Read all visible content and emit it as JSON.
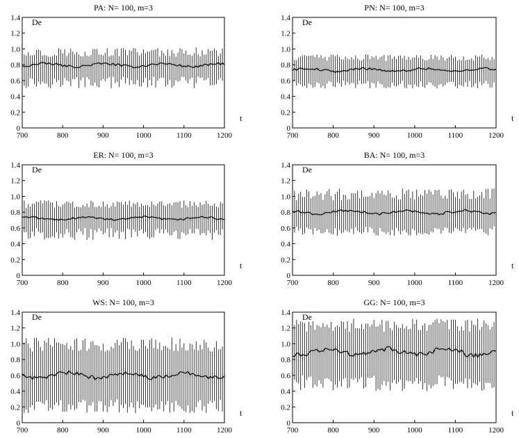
{
  "chart_data": [
    {
      "type": "line",
      "title": "PA:  N= 100, m=3",
      "ylabel": "De",
      "xlabel": "t",
      "xlim": [
        700,
        1200
      ],
      "ylim": [
        0,
        1.4
      ],
      "xticks": [
        "700",
        "800",
        "900",
        "1000",
        "1100",
        "1200"
      ],
      "yticks": [
        "0",
        "0.2",
        "0.4",
        "0.6",
        "0.8",
        "1.0",
        "1.2",
        "1.4"
      ],
      "grid": false,
      "series": [
        {
          "style": "spikes",
          "x_start": 700,
          "x_end": 1200,
          "x_step": 5,
          "y_min_range": [
            0.5,
            0.65
          ],
          "y_max_range": [
            0.9,
            1.02
          ]
        },
        {
          "style": "mean-line",
          "x_start": 700,
          "x_end": 1200,
          "x_step": 5,
          "y_range": [
            0.76,
            0.83
          ]
        }
      ]
    },
    {
      "type": "line",
      "title": "PN:  N= 100, m=3",
      "ylabel": "De",
      "xlabel": "t",
      "xlim": [
        700,
        1200
      ],
      "ylim": [
        0,
        1.4
      ],
      "xticks": [
        "700",
        "800",
        "900",
        "1000",
        "1100",
        "1200"
      ],
      "yticks": [
        "0",
        "0.2",
        "0.4",
        "0.6",
        "0.8",
        "1.0",
        "1.2",
        "1.4"
      ],
      "grid": false,
      "series": [
        {
          "style": "spikes",
          "x_start": 700,
          "x_end": 1200,
          "x_step": 5,
          "y_min_range": [
            0.5,
            0.6
          ],
          "y_max_range": [
            0.85,
            0.93
          ]
        },
        {
          "style": "mean-line",
          "x_start": 700,
          "x_end": 1200,
          "x_step": 5,
          "y_range": [
            0.7,
            0.77
          ]
        }
      ]
    },
    {
      "type": "line",
      "title": "ER:  N= 100, m=3",
      "ylabel": "De",
      "xlabel": "t",
      "xlim": [
        700,
        1200
      ],
      "ylim": [
        0,
        1.4
      ],
      "xticks": [
        "700",
        "800",
        "900",
        "1000",
        "1100",
        "1200"
      ],
      "yticks": [
        "0",
        "0.2",
        "0.4",
        "0.6",
        "0.8",
        "1.0",
        "1.2",
        "1.4"
      ],
      "grid": false,
      "series": [
        {
          "style": "spikes",
          "x_start": 700,
          "x_end": 1200,
          "x_step": 5,
          "y_min_range": [
            0.45,
            0.6
          ],
          "y_max_range": [
            0.85,
            0.95
          ]
        },
        {
          "style": "mean-line",
          "x_start": 700,
          "x_end": 1200,
          "x_step": 5,
          "y_range": [
            0.69,
            0.75
          ]
        }
      ]
    },
    {
      "type": "line",
      "title": "BA:  N= 100, m=3",
      "ylabel": "De",
      "xlabel": "t",
      "xlim": [
        700,
        1200
      ],
      "ylim": [
        0,
        1.4
      ],
      "xticks": [
        "700",
        "800",
        "900",
        "1000",
        "1100",
        "1200"
      ],
      "yticks": [
        "0",
        "0.2",
        "0.4",
        "0.6",
        "0.8",
        "1.0",
        "1.2",
        "1.4"
      ],
      "grid": false,
      "series": [
        {
          "style": "spikes",
          "x_start": 700,
          "x_end": 1200,
          "x_step": 5,
          "y_min_range": [
            0.5,
            0.62
          ],
          "y_max_range": [
            0.95,
            1.1
          ]
        },
        {
          "style": "mean-line",
          "x_start": 700,
          "x_end": 1200,
          "x_step": 5,
          "y_range": [
            0.76,
            0.84
          ]
        }
      ]
    },
    {
      "type": "line",
      "title": "WS:  N= 100, m=3",
      "ylabel": "De",
      "xlabel": "t",
      "xlim": [
        700,
        1200
      ],
      "ylim": [
        0,
        1.4
      ],
      "xticks": [
        "700",
        "800",
        "900",
        "1000",
        "1100",
        "1200"
      ],
      "yticks": [
        "0",
        "0.2",
        "0.4",
        "0.6",
        "0.8",
        "1.0",
        "1.2",
        "1.4"
      ],
      "grid": false,
      "series": [
        {
          "style": "spikes",
          "x_start": 700,
          "x_end": 1200,
          "x_step": 5,
          "y_min_range": [
            0.12,
            0.3
          ],
          "y_max_range": [
            0.9,
            1.08
          ]
        },
        {
          "style": "mean-line",
          "x_start": 700,
          "x_end": 1200,
          "x_step": 5,
          "y_range": [
            0.54,
            0.66
          ]
        }
      ]
    },
    {
      "type": "line",
      "title": "GG:  N= 100, m=3",
      "ylabel": "De",
      "xlabel": "t",
      "xlim": [
        700,
        1200
      ],
      "ylim": [
        0,
        1.4
      ],
      "xticks": [
        "700",
        "800",
        "900",
        "1000",
        "1100",
        "1200"
      ],
      "yticks": [
        "0",
        "0.2",
        "0.4",
        "0.6",
        "0.8",
        "1.0",
        "1.2",
        "1.4"
      ],
      "grid": false,
      "series": [
        {
          "style": "spikes",
          "x_start": 700,
          "x_end": 1200,
          "x_step": 5,
          "y_min_range": [
            0.4,
            0.6
          ],
          "y_max_range": [
            1.15,
            1.32
          ]
        },
        {
          "style": "mean-line",
          "x_start": 700,
          "x_end": 1200,
          "x_step": 5,
          "y_range": [
            0.82,
            0.97
          ]
        }
      ]
    }
  ]
}
